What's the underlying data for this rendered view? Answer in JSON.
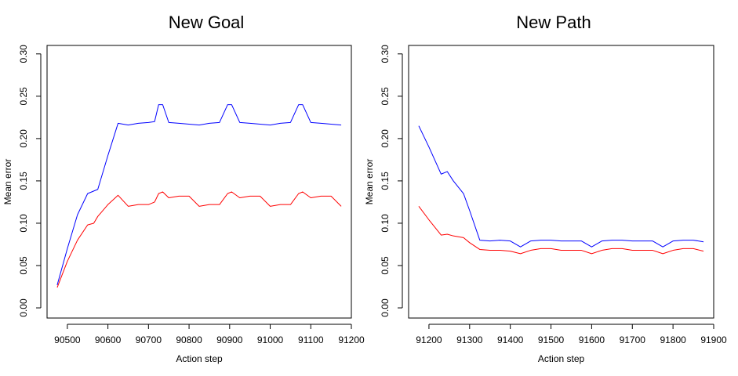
{
  "chart_data": [
    {
      "type": "line",
      "title": "New Goal",
      "xlabel": "Action step",
      "ylabel": "Mean error",
      "xlim": [
        90450,
        91200
      ],
      "ylim": [
        -0.012,
        0.31
      ],
      "xticks": [
        90500,
        90600,
        90700,
        90800,
        90900,
        91000,
        91100,
        91200
      ],
      "xtick_labels": [
        "90500",
        "90600",
        "90700",
        "90800",
        "90900",
        "91000",
        "91100",
        "91200"
      ],
      "yticks": [
        0.0,
        0.05,
        0.1,
        0.15,
        0.2,
        0.25,
        0.3
      ],
      "ytick_labels": [
        "0.00",
        "0.05",
        "0.10",
        "0.15",
        "0.20",
        "0.25",
        "0.30"
      ],
      "grid": false,
      "series": [
        {
          "color": "#0000ff",
          "x": [
            90475,
            90500,
            90525,
            90550,
            90575,
            90600,
            90625,
            90650,
            90675,
            90700,
            90715,
            90725,
            90735,
            90750,
            90775,
            90800,
            90825,
            90850,
            90875,
            90895,
            90905,
            90925,
            90950,
            90975,
            91000,
            91025,
            91050,
            91070,
            91080,
            91100,
            91125,
            91150,
            91175
          ],
          "y": [
            0.027,
            0.07,
            0.11,
            0.135,
            0.14,
            0.18,
            0.218,
            0.216,
            0.218,
            0.219,
            0.22,
            0.24,
            0.24,
            0.219,
            0.218,
            0.217,
            0.216,
            0.218,
            0.219,
            0.24,
            0.24,
            0.219,
            0.218,
            0.217,
            0.216,
            0.218,
            0.219,
            0.24,
            0.24,
            0.219,
            0.218,
            0.217,
            0.216
          ]
        },
        {
          "color": "#ff0000",
          "x": [
            90475,
            90500,
            90525,
            90550,
            90565,
            90575,
            90600,
            90625,
            90650,
            90675,
            90700,
            90715,
            90725,
            90735,
            90750,
            90775,
            90800,
            90825,
            90850,
            90875,
            90895,
            90905,
            90925,
            90950,
            90975,
            91000,
            91025,
            91050,
            91070,
            91080,
            91100,
            91125,
            91150,
            91175
          ],
          "y": [
            0.024,
            0.055,
            0.08,
            0.098,
            0.1,
            0.108,
            0.122,
            0.133,
            0.12,
            0.122,
            0.122,
            0.125,
            0.135,
            0.137,
            0.13,
            0.132,
            0.132,
            0.12,
            0.122,
            0.122,
            0.135,
            0.137,
            0.13,
            0.132,
            0.132,
            0.12,
            0.122,
            0.122,
            0.135,
            0.137,
            0.13,
            0.132,
            0.132,
            0.12
          ]
        }
      ]
    },
    {
      "type": "line",
      "title": "New Path",
      "xlabel": "Action step",
      "ylabel": "Mean error",
      "xlim": [
        91150,
        91900
      ],
      "ylim": [
        -0.012,
        0.31
      ],
      "xticks": [
        91200,
        91300,
        91400,
        91500,
        91600,
        91700,
        91800,
        91900
      ],
      "xtick_labels": [
        "91200",
        "91300",
        "91400",
        "91500",
        "91600",
        "91700",
        "91800",
        "91900"
      ],
      "yticks": [
        0.0,
        0.05,
        0.1,
        0.15,
        0.2,
        0.25,
        0.3
      ],
      "ytick_labels": [
        "0.00",
        "0.05",
        "0.10",
        "0.15",
        "0.20",
        "0.25",
        "0.30"
      ],
      "grid": false,
      "series": [
        {
          "color": "#0000ff",
          "x": [
            91175,
            91200,
            91230,
            91245,
            91260,
            91285,
            91300,
            91325,
            91350,
            91375,
            91400,
            91425,
            91450,
            91475,
            91500,
            91525,
            91550,
            91575,
            91600,
            91625,
            91650,
            91675,
            91700,
            91725,
            91750,
            91775,
            91800,
            91825,
            91850,
            91875
          ],
          "y": [
            0.215,
            0.19,
            0.158,
            0.161,
            0.15,
            0.135,
            0.115,
            0.08,
            0.079,
            0.08,
            0.079,
            0.072,
            0.079,
            0.08,
            0.08,
            0.079,
            0.079,
            0.079,
            0.072,
            0.079,
            0.08,
            0.08,
            0.079,
            0.079,
            0.079,
            0.072,
            0.079,
            0.08,
            0.08,
            0.078
          ]
        },
        {
          "color": "#ff0000",
          "x": [
            91175,
            91200,
            91230,
            91245,
            91260,
            91285,
            91300,
            91325,
            91350,
            91375,
            91400,
            91425,
            91450,
            91475,
            91500,
            91525,
            91550,
            91575,
            91600,
            91625,
            91650,
            91675,
            91700,
            91725,
            91750,
            91775,
            91800,
            91825,
            91850,
            91875
          ],
          "y": [
            0.12,
            0.104,
            0.086,
            0.087,
            0.085,
            0.083,
            0.077,
            0.069,
            0.068,
            0.068,
            0.067,
            0.064,
            0.068,
            0.07,
            0.07,
            0.068,
            0.068,
            0.068,
            0.064,
            0.068,
            0.07,
            0.07,
            0.068,
            0.068,
            0.068,
            0.064,
            0.068,
            0.07,
            0.07,
            0.067
          ]
        }
      ]
    }
  ]
}
